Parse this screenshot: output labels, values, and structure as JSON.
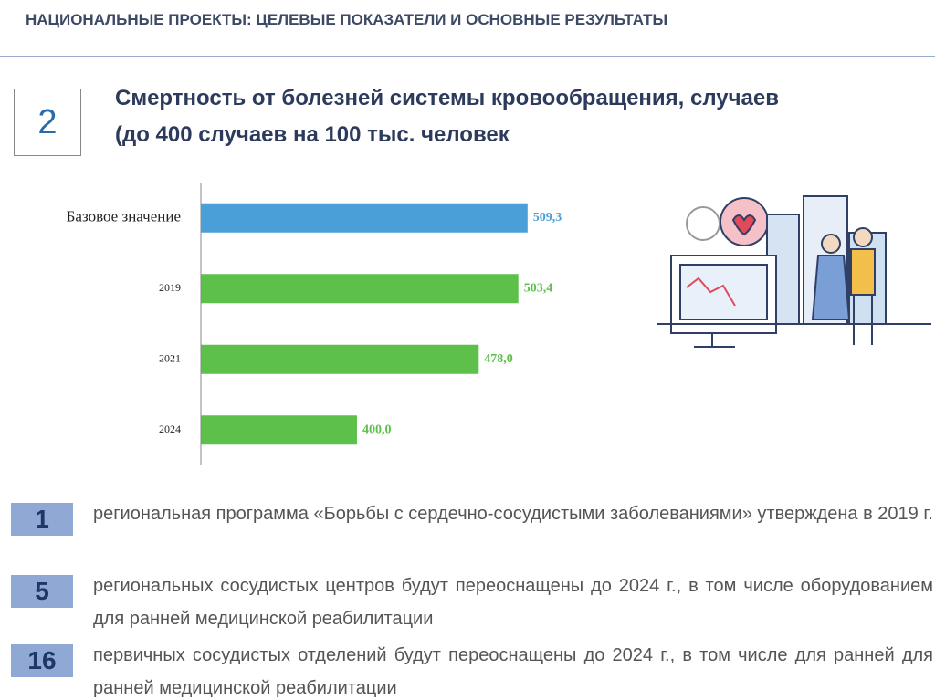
{
  "header": {
    "title": "НАЦИОНАЛЬНЫЕ ПРОЕКТЫ: ЦЕЛЕВЫЕ ПОКАЗАТЕЛИ И ОСНОВНЫЕ РЕЗУЛЬТАТЫ"
  },
  "section_number": "2",
  "chart_data": {
    "type": "hbar",
    "title": "Смертность от болезней системы кровообращения, случаев (до 400 случаев на 100 тыс. человек",
    "categories": [
      "Базовое значение",
      "2019",
      "2021",
      "2024"
    ],
    "values": [
      509.3,
      503.4,
      478.0,
      400.0
    ],
    "value_labels": [
      "509,3",
      "503,4",
      "478,0",
      "400,0"
    ],
    "colors": [
      "#4a9fd8",
      "#5cc04a",
      "#5cc04a",
      "#5cc04a"
    ],
    "xlim": [
      300,
      510
    ]
  },
  "items": [
    {
      "number": "1",
      "text": "региональная программа «Борьбы с сердечно-сосудистыми заболеваниями» утверждена в 2019 г."
    },
    {
      "number": "5",
      "text": "региональных сосудистых центров будут переоснащены до 2024 г., в том числе оборудованием для ранней медицинской реабилитации"
    },
    {
      "number": "16",
      "text": "первичных сосудистых отделений будут переоснащены до 2024 г., в том числе для ранней для ранней медицинской реабилитации"
    }
  ]
}
